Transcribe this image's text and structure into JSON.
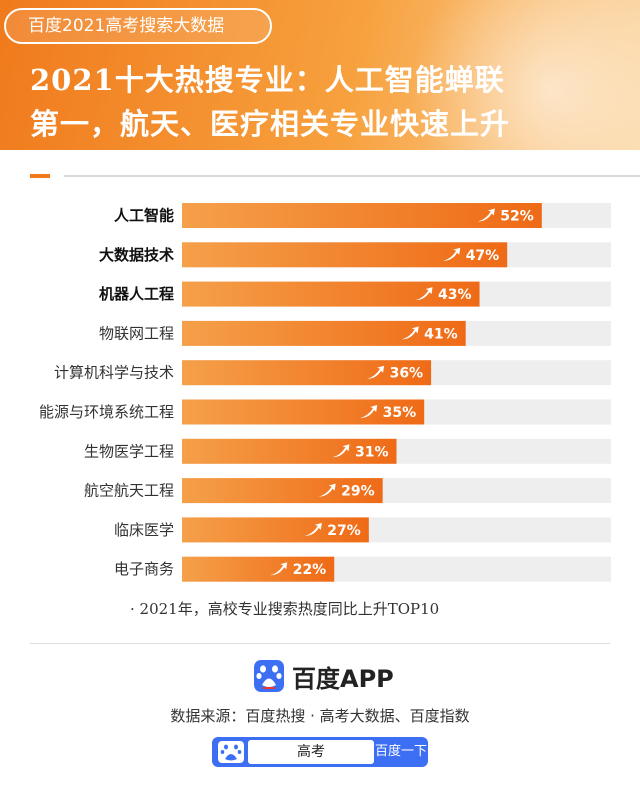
{
  "header": {
    "pill_text": "百度2021高考搜索大数据",
    "headline": "2021十大热搜专业：人工智能蝉联\n第一，航天、医疗相关专业快速上升"
  },
  "chart_data": {
    "type": "bar",
    "orientation": "horizontal",
    "categories": [
      "人工智能",
      "大数据技术",
      "机器人工程",
      "物联网工程",
      "计算机科学与技术",
      "能源与环境系统工程",
      "生物医学工程",
      "航空航天工程",
      "临床医学",
      "电子商务"
    ],
    "values": [
      52,
      47,
      43,
      41,
      36,
      35,
      31,
      29,
      27,
      22
    ],
    "value_labels": [
      "52%",
      "47%",
      "43%",
      "41%",
      "36%",
      "35%",
      "31%",
      "29%",
      "27%",
      "22%"
    ],
    "xlim": [
      0,
      62
    ],
    "bold_categories": [
      0,
      1,
      2
    ],
    "colors": {
      "bar_start": "#f5a04a",
      "bar_end": "#ef6a16",
      "track": "#eeeeee"
    }
  },
  "footnote": "· 2021年，高校专业搜索热度同比上升TOP10",
  "brand": {
    "logo_text": "百度APP"
  },
  "source": "数据来源：百度热搜 · 高考大数据、百度指数",
  "searchbar": {
    "query": "高考",
    "button_label": "百度一下",
    "color": "#3d6ff5"
  }
}
